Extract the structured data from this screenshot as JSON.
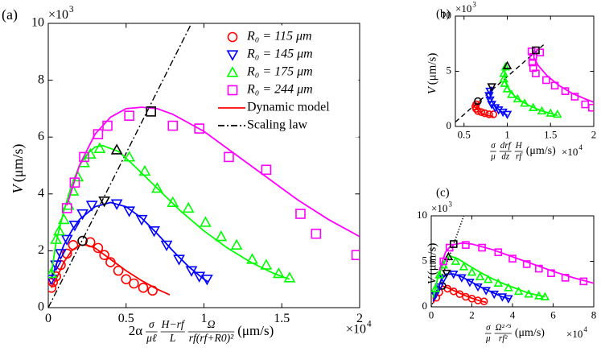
{
  "chart_data": [
    {
      "type": "scatter",
      "panel_label": "(a)",
      "y_label": {
        "symbol": "V",
        "unit": "(μm/s)"
      },
      "x_label": {
        "prefix": "2α",
        "fractions": [
          [
            "σ",
            "μℓ"
          ],
          [
            "H−rf",
            "L"
          ],
          [
            "Ω",
            "rf(rf+R0)²"
          ]
        ],
        "unit": "(μm/s)"
      },
      "x_multiplier": {
        "base": "×10",
        "exponent": "4"
      },
      "y_multiplier": {
        "base": "×10",
        "exponent": "3"
      },
      "xlim": [
        0,
        2
      ],
      "xticks": [
        0,
        0.5,
        1,
        1.5,
        2
      ],
      "ylim": [
        0,
        10
      ],
      "yticks": [
        0,
        2,
        4,
        6,
        8,
        10
      ],
      "legend": "upper right",
      "legend_lines": [
        {
          "name": "Dynamic model",
          "color": "#ff0000",
          "style": "solid"
        },
        {
          "name": "Scaling law",
          "color": "#000000",
          "style": "dashdot"
        }
      ],
      "scaling_law": {
        "x": [
          0,
          0.92
        ],
        "values": [
          0,
          10
        ],
        "style": "dashdot",
        "color": "#000000"
      },
      "series": [
        {
          "name": "R₀ = 115 μm",
          "color": "#ff0000",
          "marker": "circle",
          "x": [
            0.02,
            0.03,
            0.05,
            0.08,
            0.12,
            0.16,
            0.27,
            0.32,
            0.36,
            0.4,
            0.45,
            0.5,
            0.55,
            0.61,
            0.67
          ],
          "values": [
            0.7,
            0.9,
            1.1,
            1.5,
            1.9,
            2.2,
            2.3,
            2.1,
            1.85,
            1.6,
            1.3,
            1.0,
            0.85,
            0.7,
            0.6
          ],
          "highlight": {
            "x": 0.22,
            "y": 2.35
          },
          "model": {
            "x": [
              0.02,
              0.05,
              0.1,
              0.15,
              0.2,
              0.25,
              0.3,
              0.4,
              0.5,
              0.6,
              0.7,
              0.78
            ],
            "values": [
              0.7,
              1.0,
              1.6,
              2.0,
              2.2,
              2.2,
              2.1,
              1.7,
              1.3,
              0.95,
              0.65,
              0.45
            ]
          }
        },
        {
          "name": "R₀ = 145 μm",
          "color": "#0000ff",
          "marker": "tri_down",
          "x": [
            0.02,
            0.05,
            0.08,
            0.12,
            0.17,
            0.22,
            0.28,
            0.44,
            0.52,
            0.6,
            0.68,
            0.76,
            0.84,
            0.92,
            0.97,
            1.02
          ],
          "values": [
            1.0,
            1.5,
            1.9,
            2.4,
            2.9,
            3.3,
            3.6,
            3.65,
            3.4,
            3.1,
            2.7,
            2.2,
            1.7,
            1.3,
            1.1,
            1.0
          ],
          "highlight": {
            "x": 0.36,
            "y": 3.75
          },
          "model": {
            "x": [
              0.02,
              0.05,
              0.1,
              0.15,
              0.2,
              0.3,
              0.4,
              0.5,
              0.6,
              0.7,
              0.8,
              0.9,
              1.0,
              1.03
            ],
            "values": [
              1.0,
              1.5,
              2.2,
              2.7,
              3.1,
              3.55,
              3.7,
              3.55,
              3.15,
              2.6,
              2.0,
              1.45,
              1.0,
              0.9
            ]
          }
        },
        {
          "name": "R₀ = 175 μm",
          "color": "#00ff00",
          "marker": "tri_up",
          "x": [
            0.02,
            0.05,
            0.07,
            0.1,
            0.13,
            0.16,
            0.19,
            0.23,
            0.27,
            0.33,
            0.52,
            0.62,
            0.7,
            0.8,
            0.9,
            1.01,
            1.11,
            1.21,
            1.31,
            1.4,
            1.48,
            1.55
          ],
          "values": [
            1.2,
            2.4,
            2.7,
            3.1,
            3.6,
            4.1,
            4.6,
            5.1,
            5.4,
            5.6,
            5.3,
            4.8,
            4.2,
            3.7,
            3.5,
            3.0,
            2.5,
            2.2,
            1.7,
            1.5,
            1.2,
            1.05
          ],
          "highlight": {
            "x": 0.44,
            "y": 5.55
          },
          "model": {
            "x": [
              0.02,
              0.05,
              0.1,
              0.15,
              0.2,
              0.25,
              0.3,
              0.35,
              0.45,
              0.55,
              0.7,
              0.85,
              1.0,
              1.15,
              1.3,
              1.45,
              1.55
            ],
            "values": [
              1.2,
              2.3,
              3.4,
              4.3,
              5.0,
              5.4,
              5.65,
              5.7,
              5.5,
              5.0,
              4.2,
              3.4,
              2.7,
              2.1,
              1.6,
              1.2,
              1.0
            ]
          }
        },
        {
          "name": "R₀ = 244 μm",
          "color": "#ff00ff",
          "marker": "square",
          "x": [
            0.12,
            0.17,
            0.23,
            0.32,
            0.38,
            0.52,
            0.8,
            0.97,
            1.16,
            1.4,
            1.62,
            1.72,
            1.98
          ],
          "values": [
            3.5,
            4.4,
            5.3,
            6.1,
            6.4,
            6.75,
            6.4,
            6.3,
            5.3,
            4.85,
            3.3,
            2.6,
            1.85
          ],
          "highlight": {
            "x": 0.66,
            "y": 6.9
          },
          "model": {
            "x": [
              0.12,
              0.2,
              0.3,
              0.4,
              0.5,
              0.6,
              0.7,
              0.8,
              1.0,
              1.2,
              1.4,
              1.6,
              1.8,
              2.0
            ],
            "values": [
              3.6,
              5.0,
              6.1,
              6.7,
              7.0,
              7.05,
              7.0,
              6.8,
              6.2,
              5.4,
              4.6,
              3.8,
              3.1,
              2.5
            ]
          }
        }
      ]
    },
    {
      "type": "scatter",
      "panel_label": "(b)",
      "y_label": {
        "symbol": "V",
        "unit": "(μm/s)"
      },
      "x_label": {
        "prefix": "",
        "fractions": [
          [
            "σ",
            "μ"
          ],
          [
            "drf",
            "dz"
          ],
          [
            "H",
            "rf"
          ]
        ],
        "unit": "(μm/s)"
      },
      "x_multiplier": {
        "base": "×10",
        "exponent": "4"
      },
      "y_multiplier": {
        "base": "×10",
        "exponent": "3"
      },
      "xlim": [
        0.4,
        2
      ],
      "xticks": [
        0.5,
        1,
        1.5,
        2
      ],
      "ylim": [
        0,
        10
      ],
      "yticks": [
        0,
        5,
        10
      ],
      "scaling_law": {
        "x": [
          0.4,
          1.42
        ],
        "values": [
          0.4,
          7.4
        ],
        "style": "dashed",
        "color": "#000000"
      },
      "series": [
        {
          "color": "#ff0000",
          "marker": "circle",
          "x": [
            0.64,
            0.63,
            0.64,
            0.66,
            0.7,
            0.74,
            0.79,
            0.84
          ],
          "values": [
            2.0,
            1.8,
            1.6,
            1.4,
            1.3,
            1.2,
            1.1,
            1.1
          ],
          "highlight": {
            "x": 0.66,
            "y": 2.3
          },
          "model": {
            "x": [
              0.68,
              0.65,
              0.66,
              0.7,
              0.76,
              0.84
            ],
            "values": [
              2.3,
              1.9,
              1.5,
              1.2,
              1.0,
              0.9
            ]
          }
        },
        {
          "color": "#0000ff",
          "marker": "tri_down",
          "x": [
            0.8,
            0.79,
            0.8,
            0.82,
            0.86,
            0.9,
            0.95,
            1.0
          ],
          "values": [
            3.2,
            2.8,
            2.4,
            2.0,
            1.7,
            1.5,
            1.3,
            1.1
          ],
          "highlight": {
            "x": 0.82,
            "y": 3.6
          },
          "model": {
            "x": [
              0.82,
              0.8,
              0.81,
              0.85,
              0.92,
              1.0
            ],
            "values": [
              3.6,
              3.1,
              2.5,
              1.9,
              1.4,
              1.0
            ]
          }
        },
        {
          "color": "#00ff00",
          "marker": "tri_up",
          "x": [
            0.98,
            0.96,
            0.96,
            0.97,
            1.0,
            1.05,
            1.12,
            1.2,
            1.3,
            1.4,
            1.5,
            1.58
          ],
          "values": [
            5.4,
            4.8,
            4.3,
            3.9,
            3.4,
            2.9,
            2.5,
            2.1,
            1.7,
            1.4,
            1.2,
            1.1
          ],
          "highlight": {
            "x": 1.0,
            "y": 5.5
          },
          "model": {
            "x": [
              0.98,
              0.97,
              0.98,
              1.03,
              1.12,
              1.25,
              1.4,
              1.58
            ],
            "values": [
              5.5,
              4.8,
              4.0,
              3.2,
              2.5,
              1.9,
              1.4,
              1.0
            ]
          }
        },
        {
          "color": "#ff00ff",
          "marker": "square",
          "x": [
            1.28,
            1.38,
            1.3,
            1.29,
            1.3,
            1.33,
            1.45,
            1.55,
            1.67,
            1.78,
            1.9,
            1.98
          ],
          "values": [
            6.8,
            6.7,
            6.3,
            5.8,
            5.3,
            4.8,
            4.2,
            3.7,
            3.2,
            2.7,
            2.0,
            1.7
          ],
          "highlight": {
            "x": 1.33,
            "y": 6.9
          },
          "model": {
            "x": [
              1.3,
              1.31,
              1.36,
              1.46,
              1.6,
              1.75,
              1.9,
              2.0
            ],
            "values": [
              6.9,
              6.2,
              5.5,
              4.6,
              3.7,
              3.0,
              2.5,
              2.2
            ]
          }
        }
      ]
    },
    {
      "type": "scatter",
      "panel_label": "(c)",
      "y_label": {
        "symbol": "V",
        "unit": "(μm/s)"
      },
      "x_label": {
        "prefix": "",
        "fractions": [
          [
            "σ",
            "μ"
          ],
          [
            "Ω²ᐟ³",
            "rf²"
          ]
        ],
        "unit": "(μm/s)"
      },
      "x_multiplier": {
        "base": "×10",
        "exponent": "4"
      },
      "y_multiplier": {
        "base": "×10",
        "exponent": "3"
      },
      "xlim": [
        0,
        8
      ],
      "xticks": [
        0,
        2,
        4,
        6,
        8
      ],
      "ylim": [
        0,
        10
      ],
      "yticks": [
        0,
        5,
        10
      ],
      "scaling_law": {
        "x": [
          0,
          1.6
        ],
        "values": [
          0,
          10
        ],
        "style": "dotted",
        "color": "#000000"
      },
      "series": [
        {
          "color": "#ff0000",
          "marker": "circle",
          "x": [
            0.25,
            0.4,
            0.8,
            1.1,
            1.4,
            1.7,
            2.0,
            2.3,
            2.6
          ],
          "values": [
            1.0,
            1.6,
            2.0,
            1.7,
            1.4,
            1.1,
            0.9,
            0.7,
            0.6
          ],
          "highlight": {
            "x": 0.55,
            "y": 2.3
          },
          "model": {
            "x": [
              0.1,
              0.3,
              0.55,
              0.8,
              1.2,
              1.6,
              2.0,
              2.4,
              2.7
            ],
            "values": [
              0.4,
              1.6,
              2.3,
              2.1,
              1.7,
              1.3,
              0.95,
              0.65,
              0.5
            ]
          }
        },
        {
          "color": "#0000ff",
          "marker": "tri_down",
          "x": [
            0.2,
            0.4,
            0.6,
            1.1,
            1.5,
            1.9,
            2.3,
            2.7,
            3.1,
            3.5,
            3.8
          ],
          "values": [
            1.3,
            2.2,
            3.1,
            3.6,
            3.2,
            2.7,
            2.2,
            1.8,
            1.4,
            1.1,
            0.9
          ],
          "highlight": {
            "x": 0.75,
            "y": 3.7
          },
          "model": {
            "x": [
              0.1,
              0.3,
              0.5,
              0.75,
              1.1,
              1.5,
              2.0,
              2.5,
              3.0,
              3.5,
              3.9
            ],
            "values": [
              0.6,
              1.9,
              3.0,
              3.6,
              3.6,
              3.3,
              2.7,
              2.1,
              1.6,
              1.1,
              0.85
            ]
          }
        },
        {
          "color": "#00ff00",
          "marker": "tri_up",
          "x": [
            0.2,
            0.4,
            0.6,
            1.2,
            1.6,
            2.0,
            2.4,
            2.8,
            3.3,
            3.8,
            4.3,
            4.8,
            5.3,
            5.6
          ],
          "values": [
            2.0,
            3.5,
            4.6,
            5.0,
            4.4,
            3.8,
            3.3,
            3.0,
            2.6,
            2.1,
            1.7,
            1.4,
            1.2,
            1.1
          ],
          "highlight": {
            "x": 0.85,
            "y": 5.5
          },
          "model": {
            "x": [
              0.1,
              0.3,
              0.6,
              0.9,
              1.3,
              1.8,
              2.4,
              3.0,
              3.6,
              4.2,
              4.8,
              5.6
            ],
            "values": [
              1.0,
              3.0,
              4.8,
              5.6,
              5.3,
              4.6,
              3.8,
              3.1,
              2.5,
              2.0,
              1.5,
              1.1
            ]
          }
        },
        {
          "color": "#ff00ff",
          "marker": "square",
          "x": [
            0.6,
            0.9,
            1.7,
            2.5,
            3.3,
            4.0,
            4.7,
            5.3,
            5.9,
            6.6,
            7.5
          ],
          "values": [
            5.0,
            6.5,
            6.8,
            6.5,
            6.0,
            5.3,
            4.7,
            4.2,
            3.7,
            3.2,
            2.8
          ],
          "highlight": {
            "x": 1.1,
            "y": 6.9
          },
          "model": {
            "x": [
              0.4,
              0.7,
              1.0,
              1.5,
              2.0,
              3.0,
              4.0,
              5.0,
              6.0,
              7.0,
              8.0
            ],
            "values": [
              4.0,
              6.0,
              6.8,
              7.0,
              6.9,
              6.3,
              5.5,
              4.7,
              3.9,
              3.2,
              2.6
            ]
          }
        }
      ]
    }
  ]
}
